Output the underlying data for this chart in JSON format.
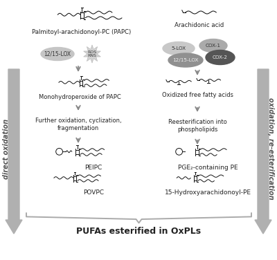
{
  "bg_color": "#ffffff",
  "title": "PUFAs esterified in OxPLs",
  "title_fontsize": 9,
  "left_label": "direct oxidation",
  "right_label": "oxidation, re-esterification",
  "left_col_label": "Palmitoyl-arachidonoyl-PC (PAPC)",
  "right_col_label": "Arachidonic acid",
  "left_enzyme": "12/15-LOX",
  "left_ros": "ROS\nRNS",
  "right_enzymes": [
    "5-LOX",
    "COX-1",
    "12/15-LOX",
    "COX-2"
  ],
  "left_steps": [
    "Monohydroperoxide of PAPC",
    "Further oxidation, cyclization,\nfragmentation",
    "PEIPC",
    "POVPC"
  ],
  "right_steps": [
    "Oxidized free fatty acids",
    "Reesterification into\nphospholipids",
    "PGE₂-containing PE",
    "15-Hydroxyarachidonoyl-PE"
  ],
  "arrow_color": "#999999",
  "big_arrow_color": "#b0b0b0",
  "enzyme_oval_color_5lox": "#c8c8c8",
  "enzyme_oval_color_cox1": "#aaaaaa",
  "enzyme_oval_color_1215lox": "#909090",
  "enzyme_oval_color_cox2": "#555555",
  "text_color": "#222222",
  "mol_color": "#111111",
  "fig_w": 4.0,
  "fig_h": 3.76,
  "dpi": 100
}
